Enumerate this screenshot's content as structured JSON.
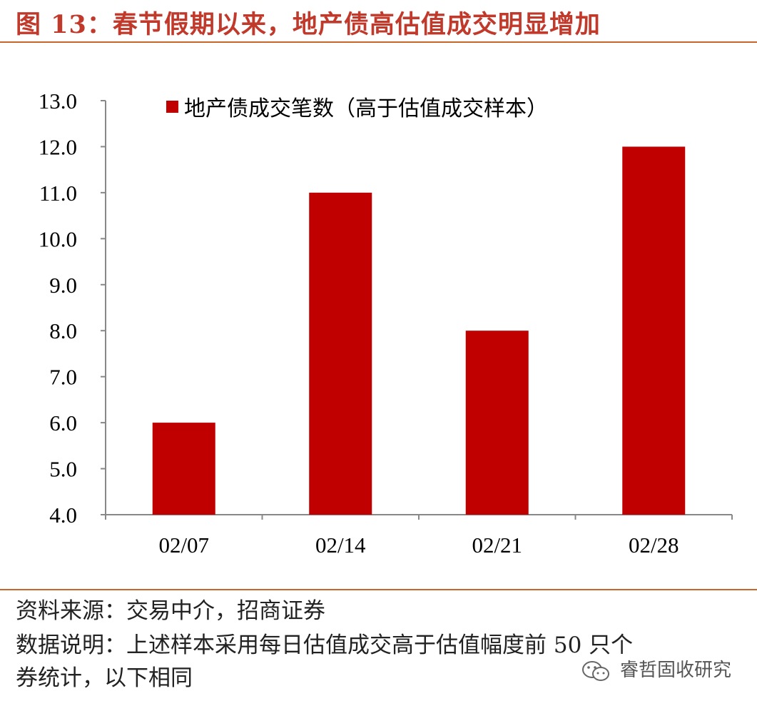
{
  "header": {
    "title": "图 13：春节假期以来，地产债高估值成交明显增加"
  },
  "chart_data": {
    "type": "bar",
    "categories": [
      "02/07",
      "02/14",
      "02/21",
      "02/28"
    ],
    "series": [
      {
        "name": "地产债成交笔数（高于估值成交样本）",
        "values": [
          6.0,
          11.0,
          8.0,
          12.0
        ],
        "color": "#c00000"
      }
    ],
    "ylim": [
      4.0,
      13.0
    ],
    "yticks": [
      "4.0",
      "5.0",
      "6.0",
      "7.0",
      "8.0",
      "9.0",
      "10.0",
      "11.0",
      "12.0",
      "13.0"
    ],
    "legend_position": "top",
    "grid": false
  },
  "footer": {
    "source": "资料来源：交易中介，招商证券",
    "note_line1": "数据说明：上述样本采用每日估值成交高于估值幅度前 50 只个",
    "note_line2": "券统计，以下相同"
  },
  "watermark": {
    "text": "睿哲固收研究",
    "icon": "wechat-icon"
  }
}
